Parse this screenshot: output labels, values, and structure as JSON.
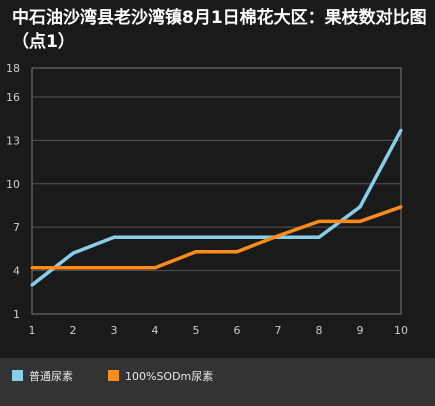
{
  "title": "中石油沙湾县老沙湾镇8月1日棉花大区：果枝数对比图（点1）",
  "chart_data": {
    "type": "line",
    "title": "中石油沙湾县老沙湾镇8月1日棉花大区：果枝数对比图（点1）",
    "xlabel": "",
    "ylabel": "",
    "x": [
      1,
      2,
      3,
      4,
      5,
      6,
      7,
      8,
      9,
      10
    ],
    "xlim": [
      1,
      10
    ],
    "ylim": [
      1,
      18
    ],
    "yticks": [
      1,
      4,
      7,
      10,
      13,
      16,
      18
    ],
    "grid": true,
    "legend_position": "bottom",
    "series": [
      {
        "name": "普通尿素",
        "color": "#87ceeb",
        "values": [
          3,
          5.2,
          6.3,
          6.3,
          6.3,
          6.3,
          6.3,
          6.3,
          8.4,
          13.7
        ]
      },
      {
        "name": "100%SODm尿素",
        "color": "#ff8c1a",
        "values": [
          4.2,
          4.2,
          4.2,
          4.2,
          5.3,
          5.3,
          6.4,
          7.4,
          7.4,
          8.4
        ]
      }
    ]
  }
}
